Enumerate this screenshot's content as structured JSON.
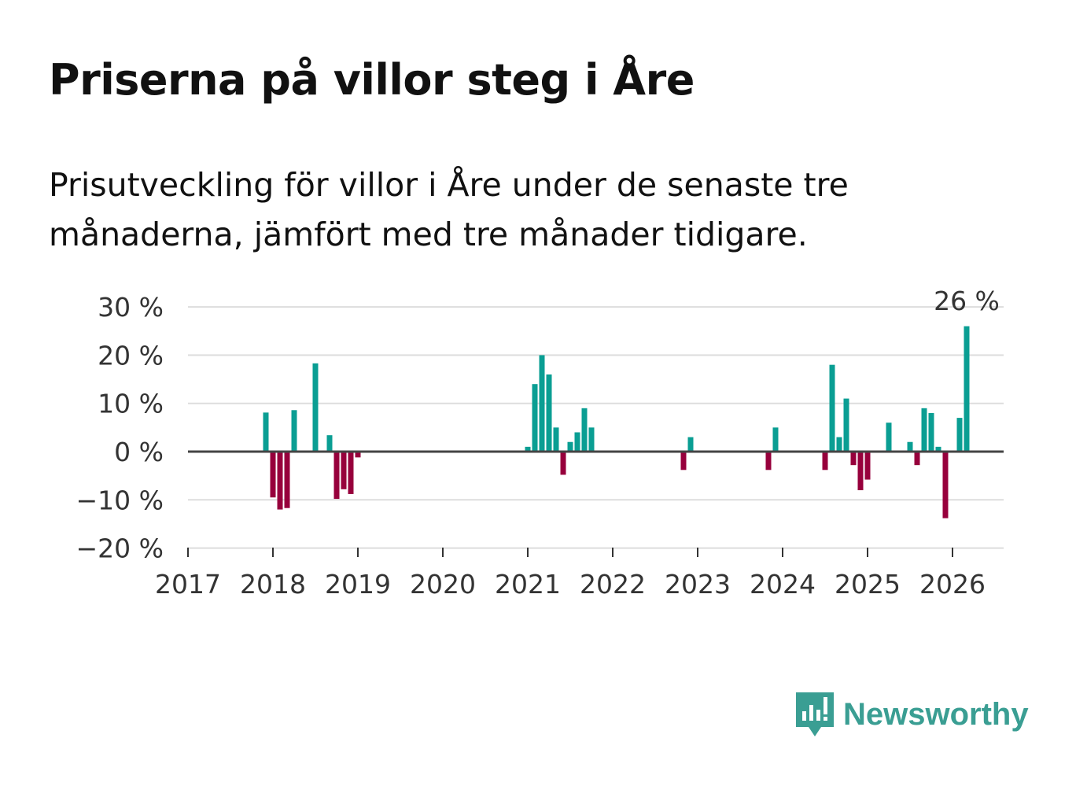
{
  "title": "Priserna på villor steg i Åre",
  "subtitle": "Prisutveckling för villor i Åre under de senaste tre månaderna, jämfört med tre månader tidigare.",
  "brand": "Newsworthy",
  "colors": {
    "positive": "#0a9e93",
    "negative": "#97003c",
    "brand": "#3a9e93"
  },
  "chart_data": {
    "type": "bar",
    "title": "Priserna på villor steg i Åre",
    "xlabel": "",
    "ylabel": "",
    "ylim": [
      -20,
      30
    ],
    "yticks": [
      {
        "v": 30,
        "label": "30 %"
      },
      {
        "v": 20,
        "label": "20 %"
      },
      {
        "v": 10,
        "label": "10 %"
      },
      {
        "v": 0,
        "label": "0 %"
      },
      {
        "v": -10,
        "label": "−10 %"
      },
      {
        "v": -20,
        "label": "−20 %"
      }
    ],
    "xticks": [
      "2017",
      "2018",
      "2019",
      "2020",
      "2021",
      "2022",
      "2023",
      "2024",
      "2025",
      "2026"
    ],
    "annotation": {
      "date": "2026-03",
      "label": "26 %"
    },
    "series": [
      {
        "name": "Prisutveckling",
        "points": [
          {
            "date": "2017-12",
            "value": 8.1
          },
          {
            "date": "2018-01",
            "value": -9.5
          },
          {
            "date": "2018-02",
            "value": -12
          },
          {
            "date": "2018-03",
            "value": -11.7
          },
          {
            "date": "2018-04",
            "value": 8.6
          },
          {
            "date": "2018-07",
            "value": 18.3
          },
          {
            "date": "2018-09",
            "value": 3.4
          },
          {
            "date": "2018-10",
            "value": -9.8
          },
          {
            "date": "2018-11",
            "value": -7.8
          },
          {
            "date": "2018-12",
            "value": -8.8
          },
          {
            "date": "2019-01",
            "value": -1.2
          },
          {
            "date": "2021-01",
            "value": 1
          },
          {
            "date": "2021-02",
            "value": 14
          },
          {
            "date": "2021-03",
            "value": 20
          },
          {
            "date": "2021-04",
            "value": 16
          },
          {
            "date": "2021-05",
            "value": 5
          },
          {
            "date": "2021-06",
            "value": -4.8
          },
          {
            "date": "2021-07",
            "value": 2
          },
          {
            "date": "2021-08",
            "value": 4
          },
          {
            "date": "2021-09",
            "value": 9
          },
          {
            "date": "2021-10",
            "value": 5
          },
          {
            "date": "2022-11",
            "value": -3.8
          },
          {
            "date": "2022-12",
            "value": 3
          },
          {
            "date": "2023-11",
            "value": -3.8
          },
          {
            "date": "2023-12",
            "value": 5
          },
          {
            "date": "2024-07",
            "value": -3.8
          },
          {
            "date": "2024-08",
            "value": 18
          },
          {
            "date": "2024-09",
            "value": 3
          },
          {
            "date": "2024-10",
            "value": 11
          },
          {
            "date": "2024-11",
            "value": -2.8
          },
          {
            "date": "2024-12",
            "value": -8
          },
          {
            "date": "2025-01",
            "value": -5.8
          },
          {
            "date": "2025-04",
            "value": 6
          },
          {
            "date": "2025-07",
            "value": 2
          },
          {
            "date": "2025-08",
            "value": -2.8
          },
          {
            "date": "2025-09",
            "value": 9
          },
          {
            "date": "2025-10",
            "value": 8
          },
          {
            "date": "2025-11",
            "value": 1
          },
          {
            "date": "2025-12",
            "value": -13.8
          },
          {
            "date": "2026-02",
            "value": 7
          },
          {
            "date": "2026-03",
            "value": 26
          }
        ]
      }
    ]
  }
}
